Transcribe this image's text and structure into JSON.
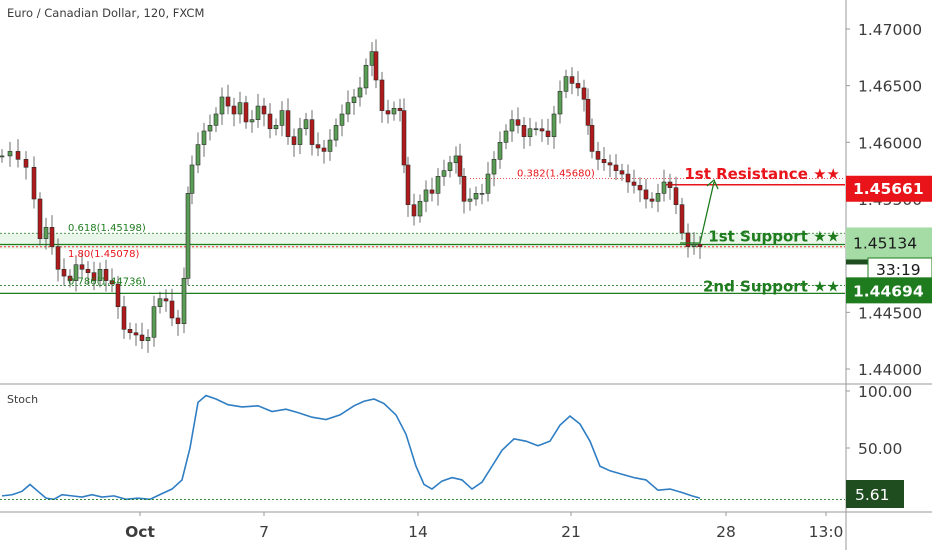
{
  "title": "Euro / Canadian Dollar, 120, FXCM",
  "countdown": "33:19",
  "colors": {
    "up": "#1f1f1f",
    "down": "#1f1f1f",
    "candle_up_fill": "#5a9e56",
    "candle_down_fill": "#b01a1a",
    "resistance": "#e8141a",
    "support": "#1e7b1e",
    "support_band": "#a5dba5",
    "stoch_line": "#2f7ec3",
    "axis_text": "#3c3c3c",
    "grid_border": "#9a9a9a"
  },
  "chart_data": [
    {
      "type": "candlestick",
      "title": "Euro / Canadian Dollar, 120, FXCM",
      "price_axis_ticks": [
        "1.47000",
        "1.46500",
        "1.46000",
        "1.45500",
        "1.45000",
        "1.44500",
        "1.44000"
      ],
      "ylim": [
        1.4375,
        1.4725
      ],
      "x_ticks": [
        "Oct",
        "7",
        "14",
        "21",
        "28",
        "13:0"
      ],
      "close_path": [
        [
          0,
          1.4588
        ],
        [
          8,
          1.4592
        ],
        [
          16,
          1.4585
        ],
        [
          24,
          1.4578
        ],
        [
          32,
          1.455
        ],
        [
          38,
          1.4515
        ],
        [
          44,
          1.4525
        ],
        [
          50,
          1.4508
        ],
        [
          56,
          1.4488
        ],
        [
          62,
          1.4482
        ],
        [
          68,
          1.4478
        ],
        [
          74,
          1.4492
        ],
        [
          80,
          1.4488
        ],
        [
          86,
          1.4485
        ],
        [
          92,
          1.4478
        ],
        [
          98,
          1.4488
        ],
        [
          104,
          1.4478
        ],
        [
          110,
          1.4475
        ],
        [
          116,
          1.4455
        ],
        [
          122,
          1.4435
        ],
        [
          128,
          1.4432
        ],
        [
          134,
          1.443
        ],
        [
          140,
          1.4425
        ],
        [
          146,
          1.4428
        ],
        [
          152,
          1.4455
        ],
        [
          158,
          1.4462
        ],
        [
          164,
          1.446
        ],
        [
          170,
          1.4445
        ],
        [
          176,
          1.444
        ],
        [
          182,
          1.448
        ],
        [
          186,
          1.4555
        ],
        [
          190,
          1.458
        ],
        [
          196,
          1.4598
        ],
        [
          202,
          1.461
        ],
        [
          208,
          1.4615
        ],
        [
          214,
          1.4625
        ],
        [
          220,
          1.464
        ],
        [
          226,
          1.4632
        ],
        [
          232,
          1.4625
        ],
        [
          238,
          1.4635
        ],
        [
          244,
          1.4618
        ],
        [
          250,
          1.462
        ],
        [
          256,
          1.4632
        ],
        [
          262,
          1.4625
        ],
        [
          268,
          1.4612
        ],
        [
          274,
          1.4615
        ],
        [
          280,
          1.4628
        ],
        [
          286,
          1.4605
        ],
        [
          292,
          1.4598
        ],
        [
          298,
          1.4612
        ],
        [
          304,
          1.462
        ],
        [
          310,
          1.4598
        ],
        [
          316,
          1.4595
        ],
        [
          322,
          1.4592
        ],
        [
          328,
          1.4602
        ],
        [
          334,
          1.4615
        ],
        [
          340,
          1.4625
        ],
        [
          346,
          1.4635
        ],
        [
          352,
          1.464
        ],
        [
          358,
          1.4648
        ],
        [
          364,
          1.4668
        ],
        [
          370,
          1.468
        ],
        [
          374,
          1.4655
        ],
        [
          380,
          1.4628
        ],
        [
          386,
          1.4625
        ],
        [
          392,
          1.463
        ],
        [
          398,
          1.4628
        ],
        [
          402,
          1.458
        ],
        [
          406,
          1.4545
        ],
        [
          412,
          1.4535
        ],
        [
          418,
          1.4548
        ],
        [
          424,
          1.4558
        ],
        [
          430,
          1.4555
        ],
        [
          436,
          1.457
        ],
        [
          442,
          1.4575
        ],
        [
          448,
          1.4582
        ],
        [
          454,
          1.4588
        ],
        [
          458,
          1.457
        ],
        [
          462,
          1.4548
        ],
        [
          468,
          1.455
        ],
        [
          474,
          1.4555
        ],
        [
          480,
          1.4555
        ],
        [
          486,
          1.4572
        ],
        [
          492,
          1.4585
        ],
        [
          498,
          1.46
        ],
        [
          504,
          1.461
        ],
        [
          510,
          1.462
        ],
        [
          516,
          1.4615
        ],
        [
          522,
          1.4605
        ],
        [
          528,
          1.4612
        ],
        [
          534,
          1.4612
        ],
        [
          540,
          1.461
        ],
        [
          546,
          1.4605
        ],
        [
          552,
          1.4625
        ],
        [
          558,
          1.4645
        ],
        [
          564,
          1.4658
        ],
        [
          570,
          1.4652
        ],
        [
          576,
          1.4648
        ],
        [
          582,
          1.4638
        ],
        [
          586,
          1.4615
        ],
        [
          590,
          1.4592
        ],
        [
          596,
          1.4585
        ],
        [
          602,
          1.4582
        ],
        [
          608,
          1.458
        ],
        [
          614,
          1.4575
        ],
        [
          620,
          1.4572
        ],
        [
          626,
          1.4565
        ],
        [
          632,
          1.4562
        ],
        [
          638,
          1.4558
        ],
        [
          644,
          1.455
        ],
        [
          650,
          1.4548
        ],
        [
          656,
          1.4555
        ],
        [
          662,
          1.4565
        ],
        [
          668,
          1.456
        ],
        [
          674,
          1.4545
        ],
        [
          680,
          1.452
        ],
        [
          686,
          1.4508
        ],
        [
          692,
          1.451
        ],
        [
          698,
          1.4508
        ]
      ],
      "levels": [
        {
          "name": "1st Resistance",
          "label": "1st Resistance ★★",
          "value": 1.45661,
          "value_label": "1.45661",
          "kind": "resistance"
        },
        {
          "name": "1st Support",
          "label": "1st Support ★★",
          "value": 1.45134,
          "value_label": "1.45134",
          "kind": "support"
        },
        {
          "name": "2nd Support",
          "label": "2nd Support ★★",
          "value": 1.44694,
          "value_label": "1.44694",
          "kind": "support"
        }
      ],
      "fib_labels": [
        {
          "text": "0.382(1.45680)",
          "value": 1.4568,
          "kind": "resistance"
        },
        {
          "text": "0.618(1.45198)",
          "value": 1.45198,
          "kind": "support"
        },
        {
          "text": "1.80(1.45078)",
          "value": 1.45078,
          "kind": "resistance"
        },
        {
          "text": "0.786(1.44736)",
          "value": 1.44736,
          "kind": "support"
        }
      ]
    },
    {
      "type": "line",
      "title": "Stoch",
      "ylim": [
        0,
        110
      ],
      "ticks": [
        "100.00",
        "50.00"
      ],
      "current_value": 5.61,
      "current_label": "5.61",
      "values": [
        [
          0,
          8
        ],
        [
          10,
          9
        ],
        [
          20,
          12
        ],
        [
          28,
          18
        ],
        [
          36,
          12
        ],
        [
          44,
          6
        ],
        [
          52,
          5
        ],
        [
          60,
          9
        ],
        [
          70,
          8
        ],
        [
          80,
          7
        ],
        [
          90,
          9
        ],
        [
          100,
          7
        ],
        [
          112,
          8
        ],
        [
          124,
          5
        ],
        [
          136,
          6
        ],
        [
          148,
          5
        ],
        [
          160,
          10
        ],
        [
          170,
          14
        ],
        [
          180,
          22
        ],
        [
          188,
          50
        ],
        [
          196,
          90
        ],
        [
          204,
          96
        ],
        [
          214,
          93
        ],
        [
          226,
          88
        ],
        [
          240,
          86
        ],
        [
          256,
          87
        ],
        [
          270,
          82
        ],
        [
          284,
          84
        ],
        [
          296,
          81
        ],
        [
          310,
          77
        ],
        [
          324,
          75
        ],
        [
          338,
          79
        ],
        [
          352,
          87
        ],
        [
          362,
          91
        ],
        [
          372,
          93
        ],
        [
          382,
          89
        ],
        [
          394,
          79
        ],
        [
          404,
          62
        ],
        [
          414,
          34
        ],
        [
          422,
          18
        ],
        [
          430,
          14
        ],
        [
          440,
          21
        ],
        [
          450,
          24
        ],
        [
          460,
          22
        ],
        [
          470,
          14
        ],
        [
          480,
          20
        ],
        [
          490,
          34
        ],
        [
          500,
          48
        ],
        [
          512,
          58
        ],
        [
          524,
          56
        ],
        [
          536,
          52
        ],
        [
          548,
          56
        ],
        [
          558,
          70
        ],
        [
          568,
          78
        ],
        [
          578,
          71
        ],
        [
          588,
          56
        ],
        [
          598,
          34
        ],
        [
          608,
          30
        ],
        [
          620,
          27
        ],
        [
          632,
          24
        ],
        [
          644,
          22
        ],
        [
          656,
          13
        ],
        [
          668,
          14
        ],
        [
          680,
          11
        ],
        [
          690,
          8
        ],
        [
          698,
          6
        ]
      ]
    }
  ]
}
